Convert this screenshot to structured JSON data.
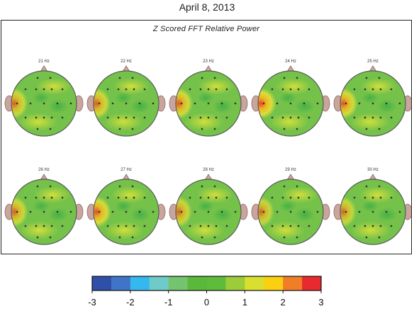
{
  "header": {
    "date": "April 8, 2013"
  },
  "panel": {
    "title": "Z Scored FFT Relative Power"
  },
  "maps": [
    {
      "label": "21 Hz",
      "hot": 0.55
    },
    {
      "label": "22 Hz",
      "hot": 0.6
    },
    {
      "label": "23 Hz",
      "hot": 0.7
    },
    {
      "label": "24 Hz",
      "hot": 0.95
    },
    {
      "label": "25 Hz",
      "hot": 0.75
    },
    {
      "label": "26 Hz",
      "hot": 0.55
    },
    {
      "label": "27 Hz",
      "hot": 0.8
    },
    {
      "label": "28 Hz",
      "hot": 0.5
    },
    {
      "label": "29 Hz",
      "hot": 0.45
    },
    {
      "label": "30 Hz",
      "hot": 0.45
    }
  ],
  "colorbar": {
    "colors": [
      "#2f4fa8",
      "#3f74c9",
      "#35b8ee",
      "#6fcbc9",
      "#74c36e",
      "#5ab93a",
      "#5fbb3a",
      "#9ccc3a",
      "#d9df2e",
      "#fbd011",
      "#f07e28",
      "#e8292e"
    ],
    "ticks": [
      "-3",
      "-2",
      "-1",
      "0",
      "1",
      "2",
      "3"
    ]
  }
}
